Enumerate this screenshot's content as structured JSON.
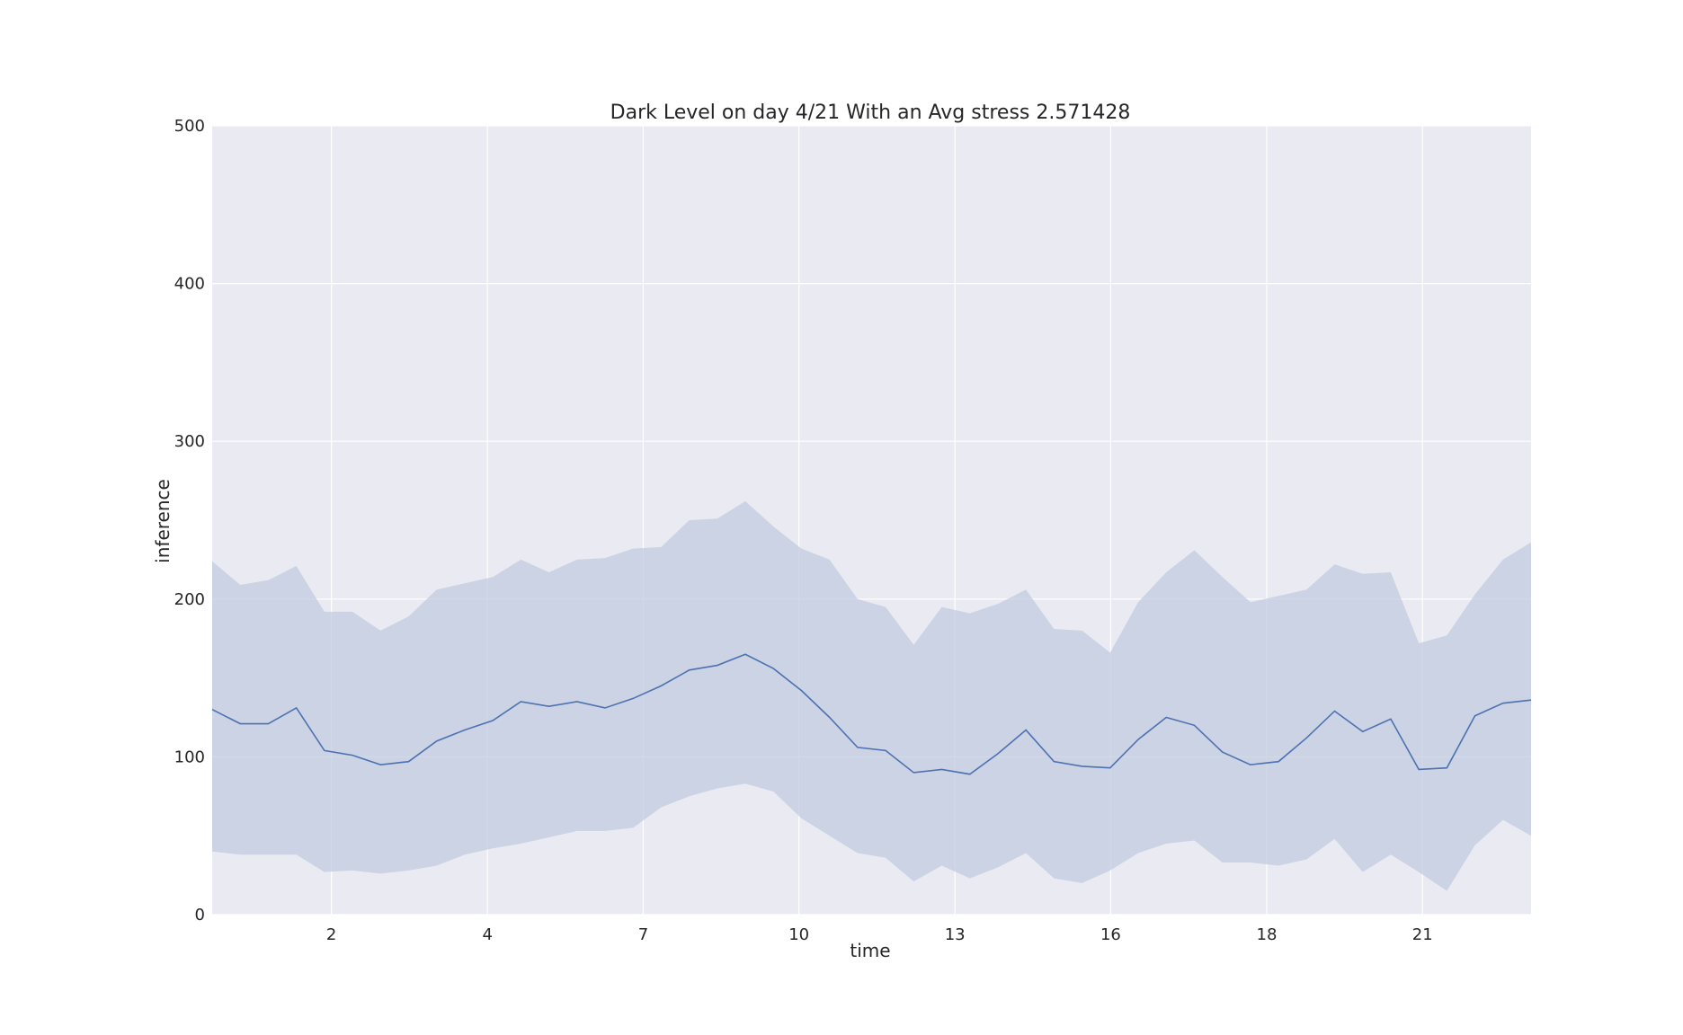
{
  "colors": {
    "plot_background": "#eaeaf2",
    "grid": "#ffffff",
    "line": "#4c72b0",
    "band": "#c2cbe0"
  },
  "chart_data": {
    "type": "line",
    "title": "Dark Level on day 4/21 With an Avg stress 2.571428",
    "xlabel": "time",
    "ylabel": "inference",
    "ylim": [
      0,
      500
    ],
    "xlim": [
      0,
      47
    ],
    "grid": true,
    "y_ticks": [
      0,
      100,
      200,
      300,
      400,
      500
    ],
    "x_ticks": [
      {
        "pos": 4.25,
        "label": "2"
      },
      {
        "pos": 9.81,
        "label": "4"
      },
      {
        "pos": 15.36,
        "label": "7"
      },
      {
        "pos": 20.91,
        "label": "10"
      },
      {
        "pos": 26.47,
        "label": "13"
      },
      {
        "pos": 32.02,
        "label": "16"
      },
      {
        "pos": 37.58,
        "label": "18"
      },
      {
        "pos": 43.13,
        "label": "21"
      }
    ],
    "series": [
      {
        "values": [
          130,
          121,
          121,
          131,
          104,
          101,
          95,
          97,
          110,
          117,
          123,
          135,
          132,
          135,
          131,
          137,
          145,
          155,
          158,
          165,
          156,
          142,
          125,
          106,
          104,
          90,
          92,
          89,
          102,
          117,
          97,
          94,
          93,
          111,
          125,
          120,
          103,
          95,
          97,
          112,
          129,
          116,
          124,
          92,
          93,
          126,
          134,
          136
        ],
        "upper": [
          224,
          209,
          212,
          221,
          192,
          192,
          180,
          189,
          206,
          210,
          214,
          225,
          217,
          225,
          226,
          232,
          233,
          250,
          251,
          262,
          246,
          232,
          225,
          200,
          195,
          171,
          195,
          191,
          197,
          206,
          181,
          180,
          166,
          198,
          217,
          231,
          214,
          198,
          202,
          206,
          222,
          216,
          217,
          172,
          177,
          203,
          225,
          236
        ],
        "lower": [
          40,
          38,
          38,
          38,
          27,
          28,
          26,
          28,
          31,
          38,
          42,
          45,
          49,
          53,
          53,
          55,
          68,
          75,
          80,
          83,
          78,
          61,
          50,
          39,
          36,
          21,
          31,
          23,
          30,
          39,
          23,
          20,
          28,
          39,
          45,
          47,
          33,
          33,
          31,
          35,
          48,
          27,
          38,
          27,
          15,
          44,
          60,
          50
        ]
      }
    ]
  }
}
